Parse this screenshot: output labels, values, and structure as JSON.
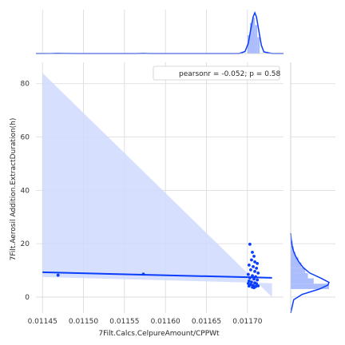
{
  "chart_data": {
    "type": "scatter",
    "subtype": "jointplot-regression",
    "title": "",
    "xlabel": "7Filt.Calcs.CelpureAmount/CPPWt",
    "ylabel": "7Filt.Aerosil Addition.ExtractDuration(h)",
    "xlim": [
      0.011442,
      0.011744
    ],
    "ylim": [
      -6,
      88
    ],
    "x_ticks": [
      0.01145,
      0.0115,
      0.01155,
      0.0116,
      0.01165,
      0.0117
    ],
    "x_tick_labels": [
      "0.01145",
      "0.01150",
      "0.01155",
      "0.01160",
      "0.01165",
      "0.01170"
    ],
    "y_ticks": [
      0,
      20,
      40,
      60,
      80
    ],
    "y_tick_labels": [
      "0",
      "20",
      "40",
      "60",
      "80"
    ],
    "grid": true,
    "legend_position": "top-right",
    "annotation": "pearsonr = -0.052; p = 0.58",
    "regression": {
      "line": [
        [
          0.01145,
          9.3
        ],
        [
          0.01173,
          7.2
        ]
      ],
      "ci_band": [
        [
          0.01145,
          84
        ],
        [
          0.01173,
          0
        ],
        [
          0.01173,
          5.2
        ],
        [
          0.01145,
          7.5
        ]
      ]
    },
    "points": [
      {
        "x": 0.011469,
        "y": 8.2
      },
      {
        "x": 0.011573,
        "y": 8.6
      },
      {
        "x": 0.011703,
        "y": 19.8
      },
      {
        "x": 0.011706,
        "y": 16.8
      },
      {
        "x": 0.011708,
        "y": 15.3
      },
      {
        "x": 0.011705,
        "y": 13.9
      },
      {
        "x": 0.011709,
        "y": 13.2
      },
      {
        "x": 0.011712,
        "y": 12.6
      },
      {
        "x": 0.011702,
        "y": 12.0
      },
      {
        "x": 0.011707,
        "y": 11.4
      },
      {
        "x": 0.011711,
        "y": 10.8
      },
      {
        "x": 0.011704,
        "y": 10.2
      },
      {
        "x": 0.011709,
        "y": 9.6
      },
      {
        "x": 0.011713,
        "y": 9.0
      },
      {
        "x": 0.011701,
        "y": 8.5
      },
      {
        "x": 0.011706,
        "y": 8.0
      },
      {
        "x": 0.01171,
        "y": 7.6
      },
      {
        "x": 0.011703,
        "y": 7.2
      },
      {
        "x": 0.011708,
        "y": 6.8
      },
      {
        "x": 0.011712,
        "y": 6.4
      },
      {
        "x": 0.011702,
        "y": 6.0
      },
      {
        "x": 0.011705,
        "y": 5.6
      },
      {
        "x": 0.011709,
        "y": 5.3
      },
      {
        "x": 0.011711,
        "y": 5.0
      },
      {
        "x": 0.011704,
        "y": 4.7
      },
      {
        "x": 0.011707,
        "y": 4.4
      },
      {
        "x": 0.011702,
        "y": 4.1
      },
      {
        "x": 0.01171,
        "y": 3.9
      },
      {
        "x": 0.011706,
        "y": 3.7
      },
      {
        "x": 0.011713,
        "y": 4.2
      },
      {
        "x": 0.011701,
        "y": 5.1
      },
      {
        "x": 0.011708,
        "y": 3.5
      }
    ],
    "top_kde": [
      [
        0.011442,
        0
      ],
      [
        0.011462,
        0.2
      ],
      [
        0.011469,
        0.6
      ],
      [
        0.011476,
        0.2
      ],
      [
        0.01149,
        0
      ],
      [
        0.011565,
        0
      ],
      [
        0.011573,
        0.6
      ],
      [
        0.011581,
        0
      ],
      [
        0.01169,
        0
      ],
      [
        0.011697,
        5
      ],
      [
        0.011701,
        25
      ],
      [
        0.011704,
        58
      ],
      [
        0.011707,
        90
      ],
      [
        0.011709,
        100
      ],
      [
        0.011711,
        90
      ],
      [
        0.011714,
        55
      ],
      [
        0.011717,
        20
      ],
      [
        0.01172,
        4
      ],
      [
        0.01173,
        0
      ],
      [
        0.011744,
        0
      ]
    ],
    "top_hist": [
      {
        "x0": 0.0117,
        "x1": 0.011703,
        "h": 45
      },
      {
        "x0": 0.011703,
        "x1": 0.011706,
        "h": 75
      },
      {
        "x0": 0.011706,
        "x1": 0.011709,
        "h": 88
      },
      {
        "x0": 0.011709,
        "x1": 0.011712,
        "h": 70
      },
      {
        "x0": 0.011712,
        "x1": 0.011715,
        "h": 40
      },
      {
        "x0": 0.011466,
        "x1": 0.011472,
        "h": 2
      },
      {
        "x0": 0.01157,
        "x1": 0.011576,
        "h": 2
      }
    ],
    "right_kde": [
      [
        -6,
        0
      ],
      [
        -1,
        0.08
      ],
      [
        1,
        0.3
      ],
      [
        3,
        0.75
      ],
      [
        4.5,
        0.97
      ],
      [
        5.5,
        1.0
      ],
      [
        7,
        0.8
      ],
      [
        9,
        0.5
      ],
      [
        11,
        0.33
      ],
      [
        13,
        0.22
      ],
      [
        15,
        0.14
      ],
      [
        17,
        0.08
      ],
      [
        19,
        0.04
      ],
      [
        22,
        0.01
      ],
      [
        24,
        0
      ]
    ],
    "right_hist": [
      {
        "y0": 3,
        "y1": 5,
        "w": 1.0
      },
      {
        "y0": 5,
        "y1": 7,
        "w": 0.6
      },
      {
        "y0": 7,
        "y1": 9,
        "w": 0.45
      },
      {
        "y0": 9,
        "y1": 11,
        "w": 0.38
      },
      {
        "y0": 11,
        "y1": 13,
        "w": 0.28
      },
      {
        "y0": 13,
        "y1": 15,
        "w": 0.2
      },
      {
        "y0": 15,
        "y1": 17,
        "w": 0.12
      },
      {
        "y0": 17,
        "y1": 19,
        "w": 0.08
      },
      {
        "y0": 19,
        "y1": 21,
        "w": 0.05
      }
    ],
    "colors": {
      "primary": "#0a3dfc",
      "band": "#cfd9fe",
      "hist": "#9db1fd",
      "grid": "#d9d9d9",
      "axis": "#cccccc"
    }
  }
}
